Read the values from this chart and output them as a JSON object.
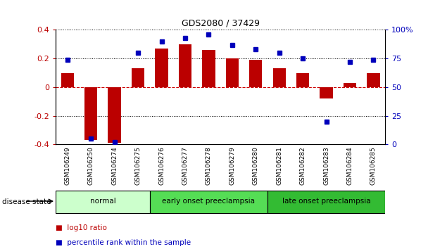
{
  "title": "GDS2080 / 37429",
  "samples": [
    "GSM106249",
    "GSM106250",
    "GSM106274",
    "GSM106275",
    "GSM106276",
    "GSM106277",
    "GSM106278",
    "GSM106279",
    "GSM106280",
    "GSM106281",
    "GSM106282",
    "GSM106283",
    "GSM106284",
    "GSM106285"
  ],
  "log10_ratio": [
    0.1,
    -0.37,
    -0.39,
    0.13,
    0.27,
    0.3,
    0.26,
    0.2,
    0.19,
    0.13,
    0.1,
    -0.08,
    0.03,
    0.1
  ],
  "percentile_rank": [
    74,
    5,
    2,
    80,
    90,
    93,
    96,
    87,
    83,
    80,
    75,
    20,
    72,
    74
  ],
  "bar_color": "#bb0000",
  "dot_color": "#0000bb",
  "groups": [
    {
      "label": "normal",
      "start": 0,
      "end": 3,
      "color": "#ccffcc"
    },
    {
      "label": "early onset preeclampsia",
      "start": 4,
      "end": 8,
      "color": "#55dd55"
    },
    {
      "label": "late onset preeclampsia",
      "start": 9,
      "end": 13,
      "color": "#33bb33"
    }
  ],
  "ylim_left": [
    -0.4,
    0.4
  ],
  "ylim_right": [
    0,
    100
  ],
  "yticks_left": [
    -0.4,
    -0.2,
    0.0,
    0.2,
    0.4
  ],
  "ytick_labels_left": [
    "-0.4",
    "-0.2",
    "0",
    "0.2",
    "0.4"
  ],
  "yticks_right": [
    0,
    25,
    50,
    75,
    100
  ],
  "ytick_labels_right": [
    "0",
    "25",
    "50",
    "75",
    "100%"
  ],
  "zero_line_color": "#cc0000",
  "background_color": "#ffffff",
  "fig_width": 6.08,
  "fig_height": 3.54,
  "dpi": 100
}
